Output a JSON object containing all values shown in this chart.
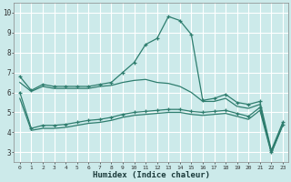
{
  "xlabel": "Humidex (Indice chaleur)",
  "bg_color": "#cceaea",
  "grid_color": "#ffffff",
  "line_color": "#2e7d6e",
  "xlim": [
    -0.5,
    23.5
  ],
  "ylim": [
    2.5,
    10.5
  ],
  "xticks": [
    0,
    1,
    2,
    3,
    4,
    5,
    6,
    7,
    8,
    9,
    10,
    11,
    12,
    13,
    14,
    15,
    16,
    17,
    18,
    19,
    20,
    21,
    22,
    23
  ],
  "yticks": [
    3,
    4,
    5,
    6,
    7,
    8,
    9,
    10
  ],
  "line1_x": [
    0,
    1,
    2,
    3,
    4,
    5,
    6,
    7,
    8,
    9,
    10,
    11,
    12,
    13,
    14,
    15,
    16,
    17,
    18,
    19,
    20,
    21,
    22,
    23
  ],
  "line1_y": [
    6.8,
    6.1,
    6.4,
    6.3,
    6.3,
    6.3,
    6.3,
    6.4,
    6.5,
    7.0,
    7.5,
    8.4,
    8.7,
    9.8,
    9.6,
    8.9,
    5.6,
    5.7,
    5.9,
    5.5,
    5.4,
    5.55,
    3.1,
    4.5
  ],
  "line2_x": [
    0,
    1,
    2,
    3,
    4,
    5,
    6,
    7,
    8,
    9,
    10,
    11,
    12,
    13,
    14,
    15,
    16,
    17,
    18,
    19,
    20,
    21,
    22,
    23
  ],
  "line2_y": [
    6.5,
    6.05,
    6.3,
    6.2,
    6.2,
    6.2,
    6.2,
    6.3,
    6.35,
    6.5,
    6.6,
    6.65,
    6.5,
    6.45,
    6.3,
    6.0,
    5.55,
    5.55,
    5.7,
    5.3,
    5.2,
    5.4,
    3.0,
    4.4
  ],
  "line3_x": [
    0,
    1,
    2,
    3,
    4,
    5,
    6,
    7,
    8,
    9,
    10,
    11,
    12,
    13,
    14,
    15,
    16,
    17,
    18,
    19,
    20,
    21,
    22,
    23
  ],
  "line3_y": [
    6.0,
    4.2,
    4.35,
    4.35,
    4.4,
    4.5,
    4.6,
    4.65,
    4.75,
    4.9,
    5.0,
    5.05,
    5.1,
    5.15,
    5.15,
    5.05,
    5.0,
    5.05,
    5.1,
    4.95,
    4.8,
    5.25,
    3.0,
    4.4
  ],
  "line4_x": [
    0,
    1,
    2,
    3,
    4,
    5,
    6,
    7,
    8,
    9,
    10,
    11,
    12,
    13,
    14,
    15,
    16,
    17,
    18,
    19,
    20,
    21,
    22,
    23
  ],
  "line4_y": [
    5.7,
    4.1,
    4.2,
    4.2,
    4.25,
    4.35,
    4.45,
    4.5,
    4.6,
    4.75,
    4.85,
    4.9,
    4.95,
    5.0,
    5.0,
    4.9,
    4.85,
    4.9,
    4.95,
    4.8,
    4.65,
    5.1,
    2.95,
    4.35
  ],
  "marker": "+"
}
